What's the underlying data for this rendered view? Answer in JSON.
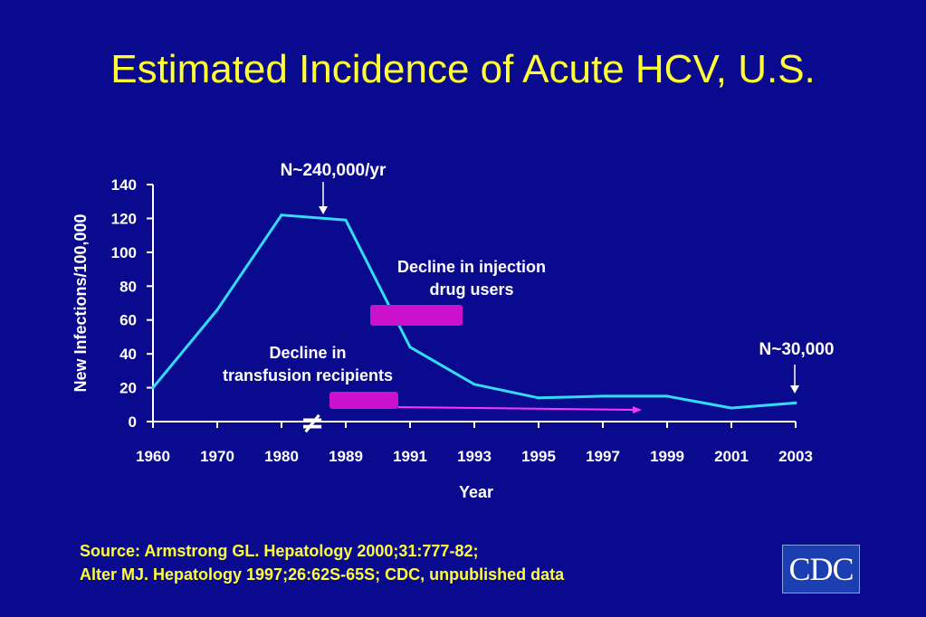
{
  "title": "Estimated Incidence of Acute HCV, U.S.",
  "source_lines": [
    "Source: Armstrong GL. Hepatology 2000;31:777-82;",
    "Alter MJ. Hepatology 1997;26:62S-65S; CDC, unpublished data"
  ],
  "logo_text": "CDC",
  "colors": {
    "background": "#0a0a8f",
    "title": "#ffff33",
    "line": "#33ddff",
    "bar": "#cc11cc",
    "arrow": "#ff33ff",
    "text": "#ffffff"
  },
  "chart_data": {
    "type": "line",
    "title": "",
    "xlabel": "Year",
    "ylabel": "New Infections/100,000",
    "categories": [
      "1960",
      "1970",
      "1980",
      "1989",
      "1991",
      "1993",
      "1995",
      "1997",
      "1999",
      "2001",
      "2003"
    ],
    "series": [
      {
        "values": [
          20,
          66,
          122,
          119,
          44,
          22,
          14,
          15,
          15,
          8,
          11
        ]
      }
    ],
    "ylim": [
      0,
      140
    ],
    "yticks": [
      0,
      20,
      40,
      60,
      80,
      100,
      120,
      140
    ],
    "grid": false,
    "axis_break_symbol": "≠",
    "annotations": {
      "peak_label": "N~240,000/yr",
      "end_label": "N~30,000",
      "injection_label": [
        "Decline in injection",
        "drug users"
      ],
      "transfusion_label": [
        "Decline in",
        "transfusion recipients"
      ]
    }
  }
}
